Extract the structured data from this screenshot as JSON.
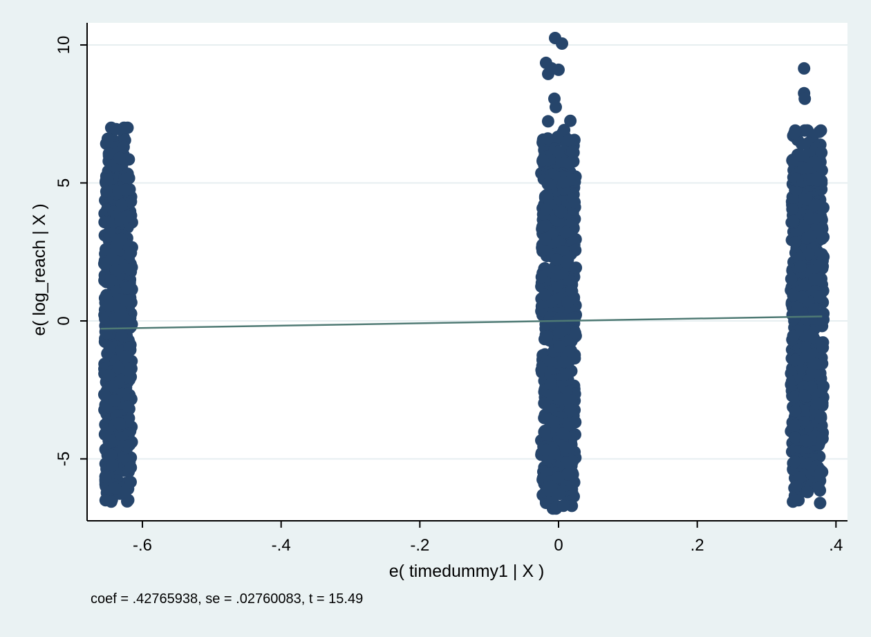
{
  "colors": {
    "outer_background": "#eaf2f3",
    "plot_background": "#ffffff",
    "gridline": "#e6eef0",
    "marker": "#26456b",
    "fit_line": "#4f7a74",
    "axis": "#000000"
  },
  "chart_data": {
    "type": "scatter",
    "title": "",
    "xlabel": "e( timedummy1 | X )",
    "ylabel": "e( log_reach | X )",
    "note": "coef = .42765938, se = .02760083, t = 15.49",
    "xlim": [
      -0.66,
      0.38
    ],
    "ylim": [
      -6.8,
      10.3
    ],
    "x_ticks": [
      -0.6,
      -0.4,
      -0.2,
      0,
      0.2,
      0.4
    ],
    "x_tick_labels": [
      "-.6",
      "-.4",
      "-.2",
      "0",
      ".2",
      ".4"
    ],
    "y_ticks": [
      -5,
      0,
      5,
      10
    ],
    "y_tick_labels": [
      "-5",
      "0",
      "5",
      "10"
    ],
    "grid": "horizontal",
    "legend": "none",
    "clusters": [
      {
        "x_range": [
          -0.655,
          -0.615
        ],
        "y_range": [
          -6.6,
          7.0
        ],
        "core_y": [
          -4.8,
          4.6
        ]
      },
      {
        "x_range": [
          -0.025,
          0.025
        ],
        "y_range": [
          -6.8,
          7.3
        ],
        "core_y": [
          -5.5,
          5.6
        ]
      },
      {
        "x_range": [
          0.335,
          0.382
        ],
        "y_range": [
          -6.6,
          6.9
        ],
        "core_y": [
          -5.0,
          5.0
        ]
      }
    ],
    "outliers": [
      {
        "x": -0.645,
        "y": 7.0
      },
      {
        "x": -0.638,
        "y": 6.95
      },
      {
        "x": -0.65,
        "y": 6.6
      },
      {
        "x": -0.627,
        "y": 6.3
      },
      {
        "x": -0.633,
        "y": 5.9
      },
      {
        "x": -0.624,
        "y": 4.75
      },
      {
        "x": -0.653,
        "y": -6.5
      },
      {
        "x": -0.645,
        "y": -6.55
      },
      {
        "x": -0.63,
        "y": -6.1
      },
      {
        "x": -0.626,
        "y": -6.2
      },
      {
        "x": -0.005,
        "y": 10.25
      },
      {
        "x": 0.005,
        "y": 10.05
      },
      {
        "x": -0.018,
        "y": 9.35
      },
      {
        "x": -0.01,
        "y": 9.15
      },
      {
        "x": -0.015,
        "y": 8.95
      },
      {
        "x": 0.0,
        "y": 9.1
      },
      {
        "x": -0.006,
        "y": 8.05
      },
      {
        "x": 0.017,
        "y": 7.25
      },
      {
        "x": -0.004,
        "y": 7.75
      },
      {
        "x": -0.003,
        "y": -6.75
      },
      {
        "x": 0.007,
        "y": -6.7
      },
      {
        "x": 0.354,
        "y": 9.15
      },
      {
        "x": 0.354,
        "y": 8.25
      },
      {
        "x": 0.355,
        "y": 8.05
      },
      {
        "x": 0.376,
        "y": 6.85
      },
      {
        "x": 0.34,
        "y": 6.8
      },
      {
        "x": 0.37,
        "y": 5.75
      },
      {
        "x": 0.338,
        "y": -6.55
      },
      {
        "x": 0.346,
        "y": -6.5
      },
      {
        "x": 0.359,
        "y": -6.2
      },
      {
        "x": 0.375,
        "y": -6.05
      }
    ],
    "fit_line": {
      "slope": 0.42765938,
      "x": [
        -0.66,
        0.38
      ],
      "y": [
        -0.282,
        0.163
      ]
    }
  }
}
